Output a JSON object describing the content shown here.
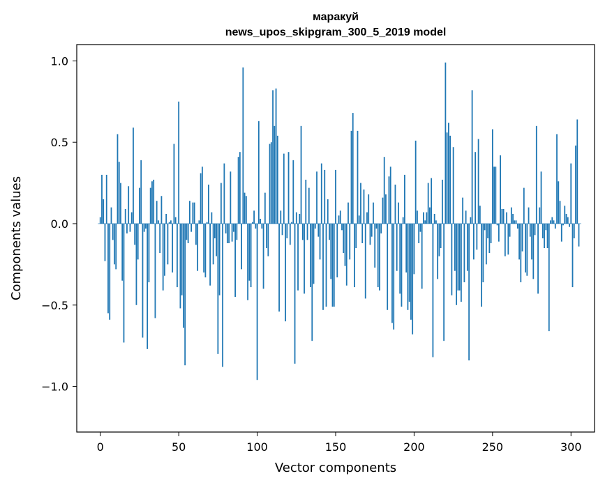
{
  "chart_data": {
    "type": "bar",
    "title": "маракуй",
    "subtitle": "news_upos_skipgram_300_5_2019 model",
    "xlabel": "Vector components",
    "ylabel": "Components values",
    "xlim": [
      -15,
      315
    ],
    "ylim": [
      -1.28,
      1.1
    ],
    "xticks": [
      0,
      50,
      100,
      150,
      200,
      250,
      300
    ],
    "yticks": [
      -1.0,
      -0.5,
      0.0,
      0.5,
      1.0
    ],
    "ytick_labels": [
      "−1.0",
      "−0.5",
      "0.0",
      "0.5",
      "1.0"
    ],
    "grid": false,
    "bar_color": "#1f77b4",
    "values": [
      0.04,
      0.3,
      0.15,
      -0.23,
      0.3,
      -0.55,
      -0.59,
      0.1,
      -0.1,
      -0.25,
      -0.28,
      0.55,
      0.38,
      0.25,
      -0.35,
      -0.73,
      0.09,
      -0.06,
      0.23,
      -0.05,
      0.07,
      0.59,
      -0.13,
      -0.5,
      -0.22,
      0.22,
      0.39,
      -0.7,
      -0.05,
      -0.03,
      -0.77,
      -0.36,
      0.22,
      0.26,
      0.27,
      -0.58,
      0.14,
      0.02,
      -0.18,
      0.17,
      -0.41,
      -0.32,
      0.06,
      -0.25,
      0.01,
      0.02,
      -0.3,
      0.49,
      0.04,
      -0.39,
      0.75,
      -0.52,
      -0.44,
      -0.64,
      -0.87,
      -0.1,
      -0.12,
      0.14,
      -0.05,
      0.13,
      0.13,
      -0.13,
      -0.29,
      0.02,
      0.31,
      0.35,
      -0.3,
      -0.33,
      0.01,
      0.24,
      -0.38,
      0.07,
      -0.25,
      -0.09,
      -0.2,
      -0.8,
      -0.44,
      0.25,
      -0.88,
      0.37,
      -0.06,
      -0.12,
      -0.12,
      0.32,
      -0.11,
      -0.05,
      -0.45,
      -0.1,
      0.41,
      0.44,
      -0.28,
      0.96,
      0.19,
      0.17,
      -0.47,
      -0.35,
      -0.39,
      0.01,
      0.08,
      -0.03,
      -0.96,
      0.63,
      0.03,
      -0.03,
      -0.4,
      0.19,
      -0.15,
      -0.2,
      0.49,
      0.5,
      0.82,
      0.6,
      0.83,
      0.54,
      -0.54,
      0.08,
      -0.07,
      0.43,
      -0.6,
      -0.09,
      0.44,
      -0.13,
      0.01,
      0.39,
      -0.86,
      0.07,
      -0.41,
      0.06,
      0.6,
      -0.1,
      -0.43,
      0.27,
      -0.1,
      0.22,
      -0.39,
      -0.72,
      -0.37,
      -0.03,
      0.32,
      -0.08,
      -0.22,
      0.37,
      -0.53,
      0.33,
      -0.51,
      0.15,
      -0.1,
      -0.34,
      -0.51,
      -0.51,
      0.33,
      -0.33,
      0.05,
      0.08,
      -0.04,
      -0.18,
      -0.26,
      -0.38,
      0.13,
      -0.22,
      0.57,
      0.68,
      -0.39,
      -0.15,
      0.57,
      0.05,
      0.25,
      -0.12,
      0.21,
      -0.46,
      0.07,
      0.18,
      -0.13,
      -0.08,
      0.13,
      -0.27,
      -0.03,
      -0.39,
      -0.41,
      -0.06,
      0.16,
      0.41,
      0.18,
      -0.53,
      0.29,
      0.35,
      -0.61,
      -0.65,
      0.24,
      -0.29,
      0.13,
      -0.43,
      -0.51,
      0.04,
      0.3,
      -0.3,
      -0.53,
      -0.48,
      -0.59,
      -0.68,
      -0.31,
      0.51,
      0.08,
      -0.12,
      -0.05,
      -0.4,
      0.07,
      0.02,
      0.07,
      0.25,
      0.1,
      0.28,
      -0.82,
      0.06,
      0.02,
      -0.34,
      -0.2,
      -0.15,
      0.27,
      -0.72,
      0.99,
      0.56,
      0.62,
      0.54,
      -0.44,
      0.47,
      -0.29,
      -0.5,
      -0.41,
      -0.41,
      -0.48,
      0.16,
      -0.36,
      0.08,
      -0.29,
      -0.84,
      0.04,
      0.82,
      -0.22,
      0.44,
      -0.16,
      0.52,
      0.11,
      -0.51,
      -0.36,
      -0.04,
      -0.25,
      -0.09,
      -0.18,
      -0.12,
      0.58,
      0.35,
      0.35,
      -0.01,
      -0.11,
      0.42,
      0.09,
      0.09,
      -0.2,
      0.07,
      -0.19,
      -0.08,
      0.1,
      0.06,
      0.02,
      0.02,
      -0.03,
      -0.22,
      -0.36,
      -0.17,
      0.22,
      -0.3,
      -0.32,
      0.1,
      -0.08,
      -0.22,
      -0.34,
      -0.07,
      0.6,
      -0.43,
      0.1,
      0.32,
      -0.09,
      -0.15,
      -0.04,
      -0.15,
      -0.66,
      0.02,
      0.04,
      0.02,
      -0.03,
      0.55,
      0.26,
      0.14,
      -0.11,
      -0.01,
      0.11,
      0.06,
      0.04,
      -0.02,
      0.37,
      -0.39,
      -0.09,
      0.48,
      0.64,
      -0.14
    ]
  }
}
